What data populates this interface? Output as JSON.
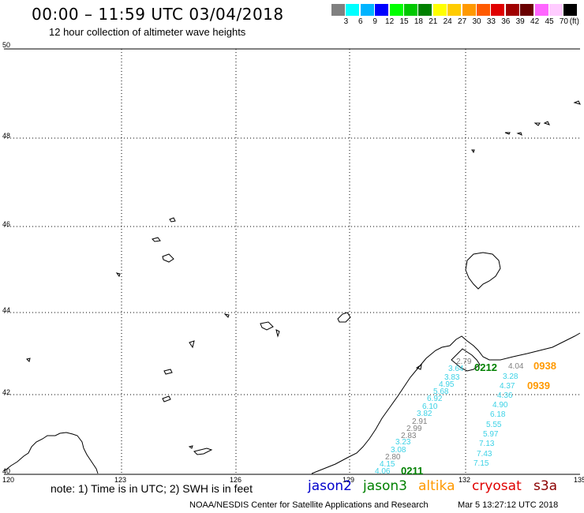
{
  "header": {
    "title": "00:00 – 11:59 UTC 03/04/2018",
    "subtitle": "12 hour collection of altimeter wave heights"
  },
  "scale": {
    "colors": [
      "#808080",
      "#00ffff",
      "#00b4ff",
      "#0000ff",
      "#00ff00",
      "#00c800",
      "#008000",
      "#ffff00",
      "#ffcc00",
      "#ff9900",
      "#ff5a00",
      "#e00000",
      "#a00000",
      "#6a0000",
      "#ff66ff",
      "#ffccff",
      "#000000"
    ],
    "labels": [
      "3",
      "6",
      "9",
      "12",
      "15",
      "18",
      "21",
      "24",
      "27",
      "30",
      "33",
      "36",
      "39",
      "42",
      "45",
      "70",
      "(ft)"
    ]
  },
  "axes": {
    "lat_labels": [
      "50",
      "48",
      "46",
      "44",
      "42",
      "40"
    ],
    "lon_labels": [
      "120",
      "123",
      "126",
      "129",
      "132",
      "135"
    ]
  },
  "tracks": {
    "track_a": {
      "color": "#3cd2e6",
      "label": "3.64 3.83 4.95 5.68 6.92 6.10 3.82",
      "values": [
        "3.64",
        "3.83",
        "4.95",
        "5.68",
        "6.92",
        "6.10",
        "3.82"
      ]
    },
    "track_b": {
      "color": "#808080",
      "values": [
        "2.79",
        "2.91",
        "2.99",
        "2.83"
      ]
    },
    "track_c": {
      "color": "#3cd2e6",
      "values": [
        "3.23",
        "3.08",
        "2.80",
        "4.15",
        "4.06"
      ]
    },
    "track_d": {
      "color": "#3cd2e6",
      "values": [
        "3.28",
        "4.37",
        "4.36",
        "4.90",
        "6.18",
        "5.55",
        "5.97",
        "7.13",
        "7.43",
        "7.15"
      ]
    },
    "track_d_top": {
      "color": "#808080",
      "value": "4.04"
    },
    "pass_times": [
      {
        "text": "0212",
        "color": "#008000"
      },
      {
        "text": "0211",
        "color": "#008000"
      },
      {
        "text": "0938",
        "color": "#ff9900"
      },
      {
        "text": "0939",
        "color": "#ff9900"
      }
    ]
  },
  "footer": {
    "note": "note: 1) Time is in UTC; 2) SWH is in feet",
    "missions": [
      {
        "name": "jason2",
        "color": "#0000cc"
      },
      {
        "name": "jason3",
        "color": "#008000"
      },
      {
        "name": "altika",
        "color": "#ff9900"
      },
      {
        "name": "cryosat",
        "color": "#e00000"
      },
      {
        "name": "s3a",
        "color": "#8b0000"
      }
    ],
    "credit": "NOAA/NESDIS Center for Satellite Applications and Research",
    "timestamp": "Mar  5 13:27:12 UTC 2018"
  }
}
